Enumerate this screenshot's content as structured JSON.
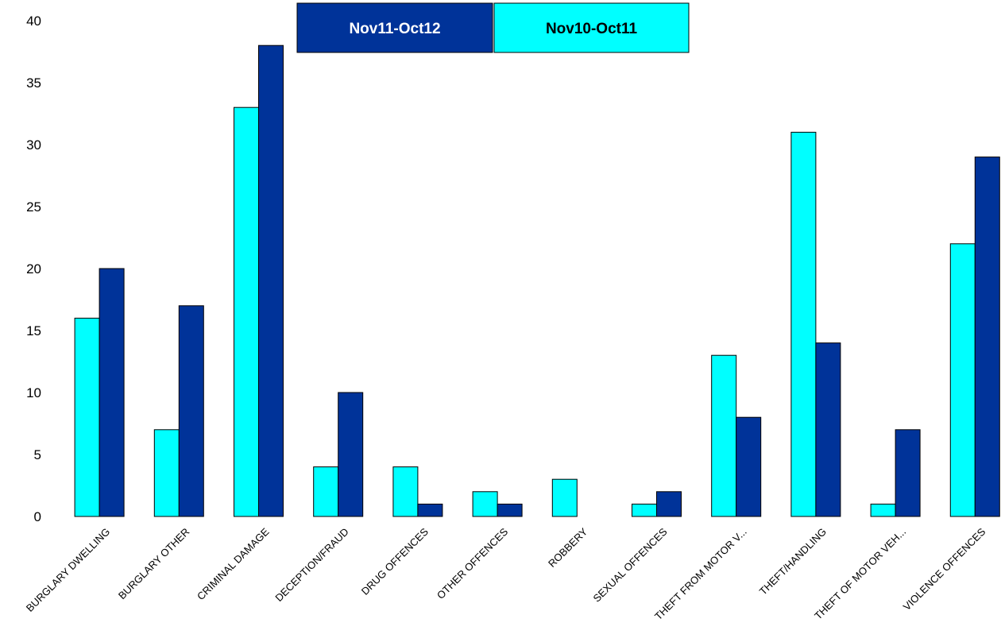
{
  "chart_data": {
    "type": "bar",
    "categories": [
      "BURGLARY DWELLING",
      "BURGLARY OTHER",
      "CRIMINAL DAMAGE",
      "DECEPTION/FRAUD",
      "DRUG OFFENCES",
      "OTHER OFFENCES",
      "ROBBERY",
      "SEXUAL OFFENCES",
      "THEFT FROM MOTOR V...",
      "THEFT/HANDLING",
      "THEFT OF MOTOR VEH...",
      "VIOLENCE OFFENCES"
    ],
    "series": [
      {
        "name": "Nov10-Oct11",
        "color": "#00FFFF",
        "values": [
          16,
          7,
          33,
          4,
          4,
          2,
          3,
          1,
          13,
          31,
          1,
          22
        ]
      },
      {
        "name": "Nov11-Oct12",
        "color": "#003399",
        "values": [
          20,
          17,
          38,
          10,
          1,
          1,
          0,
          2,
          8,
          14,
          7,
          29
        ]
      }
    ],
    "legend_order": [
      "Nov11-Oct12",
      "Nov10-Oct11"
    ],
    "legend_placement": "top-center",
    "ylim": [
      0,
      40
    ],
    "yticks": [
      0,
      5,
      10,
      15,
      20,
      25,
      30,
      35,
      40
    ],
    "grid": false,
    "title": "",
    "xlabel": "",
    "ylabel": ""
  }
}
